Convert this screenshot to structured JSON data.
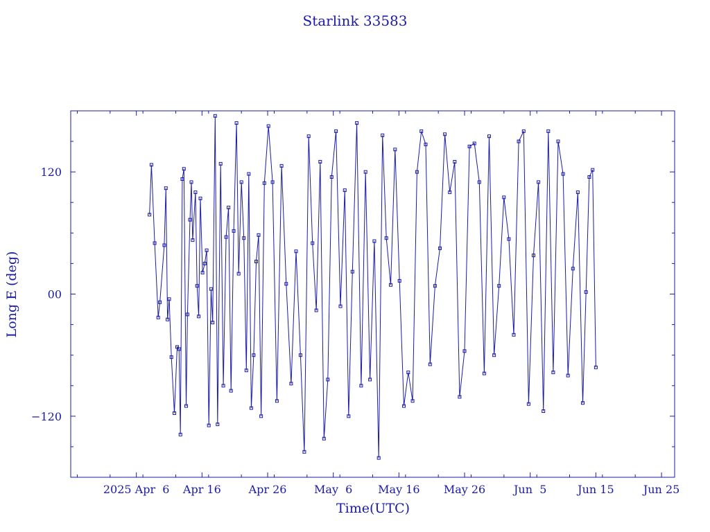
{
  "chart_data": {
    "type": "scatter",
    "title": "Starlink 33583",
    "xlabel": "Time(UTC)",
    "ylabel": "Long E (deg)",
    "xlim": [
      "2025-03-27",
      "2025-06-27"
    ],
    "ylim": [
      -180,
      180
    ],
    "x_ticks": [
      {
        "date": "2025-04-06",
        "label": "2025 Apr  6"
      },
      {
        "date": "2025-04-16",
        "label": "Apr 16"
      },
      {
        "date": "2025-04-26",
        "label": "Apr 26"
      },
      {
        "date": "2025-05-06",
        "label": "May  6"
      },
      {
        "date": "2025-05-16",
        "label": "May 16"
      },
      {
        "date": "2025-05-26",
        "label": "May 26"
      },
      {
        "date": "2025-06-05",
        "label": "Jun  5"
      },
      {
        "date": "2025-06-15",
        "label": "Jun 15"
      },
      {
        "date": "2025-06-25",
        "label": "Jun 25"
      }
    ],
    "y_ticks": [
      {
        "value": 120,
        "label": "120"
      },
      {
        "value": 0,
        "label": "00"
      },
      {
        "value": -120,
        "label": "−120"
      }
    ],
    "grid": false,
    "line_color": "#1a1aa6",
    "marker": "open-square",
    "series": [
      {
        "x": [
          "2025-04-08T00:00",
          "2025-04-08T07:00",
          "2025-04-08T19:00",
          "2025-04-09T08:00",
          "2025-04-09T14:00",
          "2025-04-10T06:00",
          "2025-04-10T12:00",
          "2025-04-10T18:00",
          "2025-04-11T00:00",
          "2025-04-11T08:00",
          "2025-04-11T19:00",
          "2025-04-12T05:00",
          "2025-04-12T12:00",
          "2025-04-12T17:00",
          "2025-04-13T00:00",
          "2025-04-13T06:00",
          "2025-04-13T14:00",
          "2025-04-13T19:00",
          "2025-04-14T04:00",
          "2025-04-14T09:00",
          "2025-04-14T14:00",
          "2025-04-15T00:00",
          "2025-04-15T06:00",
          "2025-04-15T12:00",
          "2025-04-15T18:00",
          "2025-04-16T02:00",
          "2025-04-16T10:00",
          "2025-04-16T17:00",
          "2025-04-17T01:00",
          "2025-04-17T09:00",
          "2025-04-17T15:00",
          "2025-04-18T00:00",
          "2025-04-18T09:00",
          "2025-04-18T20:00",
          "2025-04-19T06:00",
          "2025-04-19T16:00",
          "2025-04-20T01:00",
          "2025-04-20T10:00",
          "2025-04-20T20:00",
          "2025-04-21T06:00",
          "2025-04-21T14:00",
          "2025-04-22T00:00",
          "2025-04-22T09:00",
          "2025-04-22T18:00",
          "2025-04-23T03:00",
          "2025-04-23T12:00",
          "2025-04-23T21:00",
          "2025-04-24T06:00",
          "2025-04-24T15:00",
          "2025-04-25T00:00",
          "2025-04-25T12:00",
          "2025-04-26T03:00",
          "2025-04-26T18:00",
          "2025-04-27T10:00",
          "2025-04-28T03:00",
          "2025-04-28T20:00",
          "2025-04-29T14:00",
          "2025-04-30T08:00",
          "2025-05-01T00:00",
          "2025-05-01T14:00",
          "2025-05-02T06:00",
          "2025-05-02T20:00",
          "2025-05-03T10:00",
          "2025-05-04T00:00",
          "2025-05-04T14:00",
          "2025-05-05T04:00",
          "2025-05-05T18:00",
          "2025-05-06T10:00",
          "2025-05-07T02:00",
          "2025-05-07T18:00",
          "2025-05-08T08:00",
          "2025-05-08T22:00",
          "2025-05-09T14:00",
          "2025-05-10T06:00",
          "2025-05-10T22:00",
          "2025-05-11T14:00",
          "2025-05-12T06:00",
          "2025-05-12T22:00",
          "2025-05-13T12:00",
          "2025-05-14T02:00",
          "2025-05-14T18:00",
          "2025-05-15T10:00",
          "2025-05-16T02:00",
          "2025-05-16T18:00",
          "2025-05-17T10:00",
          "2025-05-18T02:00",
          "2025-05-18T18:00",
          "2025-05-19T10:00",
          "2025-05-20T02:00",
          "2025-05-20T18:00",
          "2025-05-21T12:00",
          "2025-05-22T06:00",
          "2025-05-23T00:00",
          "2025-05-23T18:00",
          "2025-05-24T12:00",
          "2025-05-25T06:00",
          "2025-05-26T00:00",
          "2025-05-26T18:00",
          "2025-05-27T12:00",
          "2025-05-28T06:00",
          "2025-05-29T00:00",
          "2025-05-29T18:00",
          "2025-05-30T12:00",
          "2025-05-31T06:00",
          "2025-06-01T00:00",
          "2025-06-01T18:00",
          "2025-06-02T12:00",
          "2025-06-03T06:00",
          "2025-06-04T00:00",
          "2025-06-04T18:00",
          "2025-06-05T12:00",
          "2025-06-06T06:00",
          "2025-06-07T00:00",
          "2025-06-07T18:00",
          "2025-06-08T12:00",
          "2025-06-09T06:00",
          "2025-06-10T00:00",
          "2025-06-10T18:00",
          "2025-06-11T12:00",
          "2025-06-12T06:00",
          "2025-06-13T00:00",
          "2025-06-13T12:00",
          "2025-06-14T00:00",
          "2025-06-14T12:00",
          "2025-06-15T00:00"
        ],
        "y": [
          78,
          127,
          50,
          -23,
          -8,
          48,
          104,
          -25,
          -5,
          -62,
          -117,
          -52,
          -54,
          -138,
          113,
          123,
          -110,
          -20,
          73,
          110,
          53,
          100,
          8,
          -22,
          94,
          21,
          30,
          43,
          -129,
          5,
          -28,
          175,
          -128,
          128,
          -90,
          56,
          85,
          -95,
          62,
          168,
          20,
          110,
          55,
          -75,
          118,
          -112,
          -60,
          32,
          58,
          -120,
          109,
          165,
          110,
          -105,
          126,
          10,
          -88,
          42,
          -60,
          -155,
          155,
          50,
          -16,
          130,
          -142,
          -84,
          115,
          160,
          -12,
          102,
          -120,
          22,
          168,
          -90,
          120,
          -84,
          52,
          -161,
          156,
          55,
          9,
          142,
          13,
          -110,
          -77,
          -105,
          120,
          160,
          147,
          -69,
          8,
          45,
          157,
          100,
          130,
          -101,
          -56,
          145,
          148,
          110,
          -78,
          155,
          -60,
          8,
          95,
          54,
          -40,
          150,
          160,
          -108,
          38,
          110,
          -115,
          160,
          -77,
          150,
          118,
          -80,
          25,
          100,
          -107,
          2,
          115,
          122,
          -72
        ]
      }
    ]
  }
}
